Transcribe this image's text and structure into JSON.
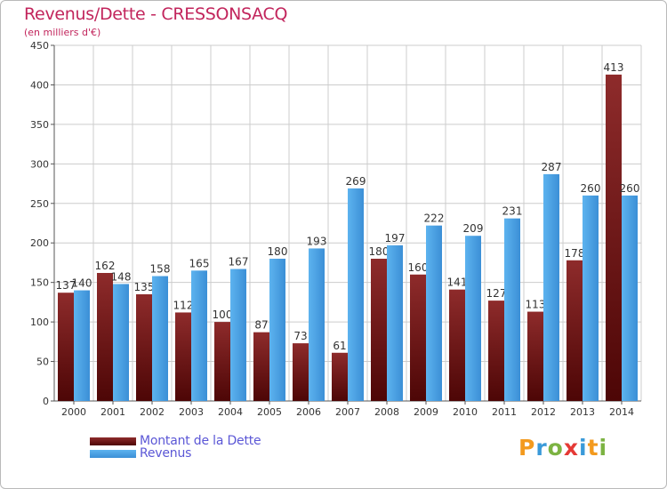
{
  "colors": {
    "debt": "#7b1e1e",
    "revenue": "#4aa3e6",
    "title": "#c2255c",
    "legend_text": "#5b57d6",
    "grid": "#cccccc"
  },
  "legend": {
    "debt_label": "Montant de la Dette",
    "revenue_label": "Revenus",
    "placement": "bottom-left"
  },
  "logo": {
    "letters": [
      "P",
      "r",
      "o",
      "x",
      "i",
      "t",
      "i"
    ]
  },
  "chart_data": {
    "type": "bar",
    "title": "Revenus/Dette - CRESSONSACQ",
    "subtitle": "(en milliers d'€)",
    "xlabel": "",
    "ylabel": "",
    "ylim": [
      0,
      450
    ],
    "yticks": [
      0,
      50,
      100,
      150,
      200,
      250,
      300,
      350,
      400,
      450
    ],
    "grid": true,
    "categories": [
      "2000",
      "2001",
      "2002",
      "2003",
      "2004",
      "2005",
      "2006",
      "2007",
      "2008",
      "2009",
      "2010",
      "2011",
      "2012",
      "2013",
      "2014"
    ],
    "series": [
      {
        "name": "Montant de la Dette",
        "values": [
          137,
          162,
          135,
          112,
          100,
          87,
          73,
          61,
          180,
          160,
          141,
          127,
          113,
          178,
          413
        ]
      },
      {
        "name": "Revenus",
        "values": [
          140,
          148,
          158,
          165,
          167,
          180,
          193,
          269,
          197,
          222,
          209,
          231,
          287,
          260,
          260
        ]
      }
    ]
  }
}
